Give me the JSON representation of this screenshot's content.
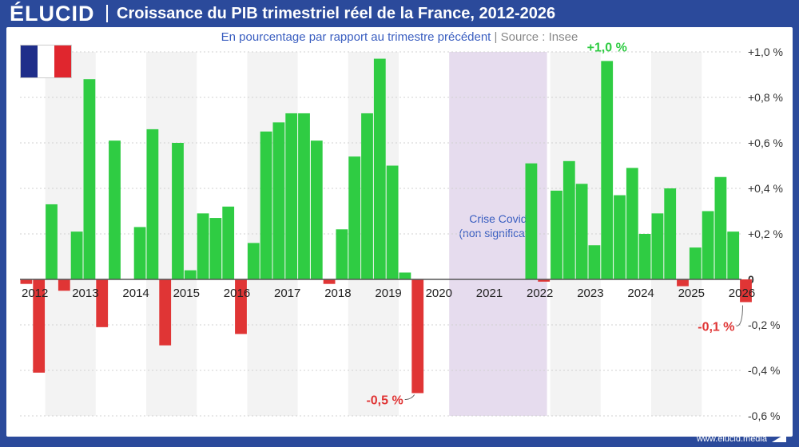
{
  "header": {
    "logo": "ÉLUCID",
    "title": "Croissance du PIB trimestriel réel de la France, 2012-2026"
  },
  "subtitle": {
    "main": "En pourcentage par rapport au trimestre précédent",
    "separator": "|",
    "source": "Source : Insee"
  },
  "footer": {
    "website": "www.elucid.media"
  },
  "colors": {
    "positive": "#2fcc43",
    "negative": "#e03535",
    "covid_band": "#e6dcee",
    "alt_band": "#f3f3f3",
    "flag_blue": "#1f2e8a",
    "flag_white": "#ffffff",
    "flag_red": "#e0262e"
  },
  "chart_data": {
    "type": "bar",
    "title": "Croissance du PIB trimestriel réel de la France, 2012-2026",
    "subtitle": "En pourcentage par rapport au trimestre précédent | Source : Insee",
    "ylim": [
      -0.6,
      1.0
    ],
    "yticks": [
      {
        "v": 1.0,
        "label": "+1,0 %"
      },
      {
        "v": 0.8,
        "label": "+0,8 %"
      },
      {
        "v": 0.6,
        "label": "+0,6 %"
      },
      {
        "v": 0.4,
        "label": "+0,4 %"
      },
      {
        "v": 0.2,
        "label": "+0,2 %"
      },
      {
        "v": 0.0,
        "label": "0"
      },
      {
        "v": -0.2,
        "label": "-0,2 %"
      },
      {
        "v": -0.4,
        "label": "-0,4 %"
      },
      {
        "v": -0.6,
        "label": "-0,6 %"
      }
    ],
    "years": [
      "2012",
      "2013",
      "2014",
      "2015",
      "2016",
      "2017",
      "2018",
      "2019",
      "2020",
      "2021",
      "2022",
      "2023",
      "2024",
      "2025",
      "2026"
    ],
    "values_by_year": [
      [
        -0.02,
        -0.41,
        0.33,
        -0.05
      ],
      [
        0.21,
        0.88,
        -0.21,
        0.61
      ],
      [
        0.0,
        0.23,
        0.66,
        -0.29
      ],
      [
        0.6,
        0.04,
        0.29,
        0.27
      ],
      [
        0.32,
        -0.24,
        0.16,
        0.65
      ],
      [
        0.69,
        0.73,
        0.73,
        0.61
      ],
      [
        -0.02,
        0.22,
        0.54,
        0.73
      ],
      [
        0.97,
        0.5,
        0.03,
        -0.5
      ],
      [
        null,
        null,
        null,
        null
      ],
      [
        null,
        null,
        null,
        null
      ],
      [
        0.51,
        -0.01,
        0.39,
        0.52
      ],
      [
        0.42,
        0.15,
        0.96,
        0.37
      ],
      [
        0.49,
        0.2,
        0.29,
        0.4
      ],
      [
        -0.03,
        0.14,
        0.3,
        0.45
      ],
      [
        0.21,
        -0.1
      ]
    ],
    "covid_band": {
      "from": "2020",
      "to": "2021",
      "label_line1": "Crise Covid",
      "label_line2": "(non significatif)"
    },
    "annotations": [
      {
        "text": "+1,0 %",
        "year": "2023",
        "quarter": 3,
        "value": 0.96
      },
      {
        "text": "-0,5 %",
        "year": "2019",
        "quarter": 4,
        "value": -0.5
      },
      {
        "text": "-0,1 %",
        "year": "2026",
        "quarter": 2,
        "value": -0.1
      }
    ],
    "grid": true,
    "legend": "none"
  }
}
